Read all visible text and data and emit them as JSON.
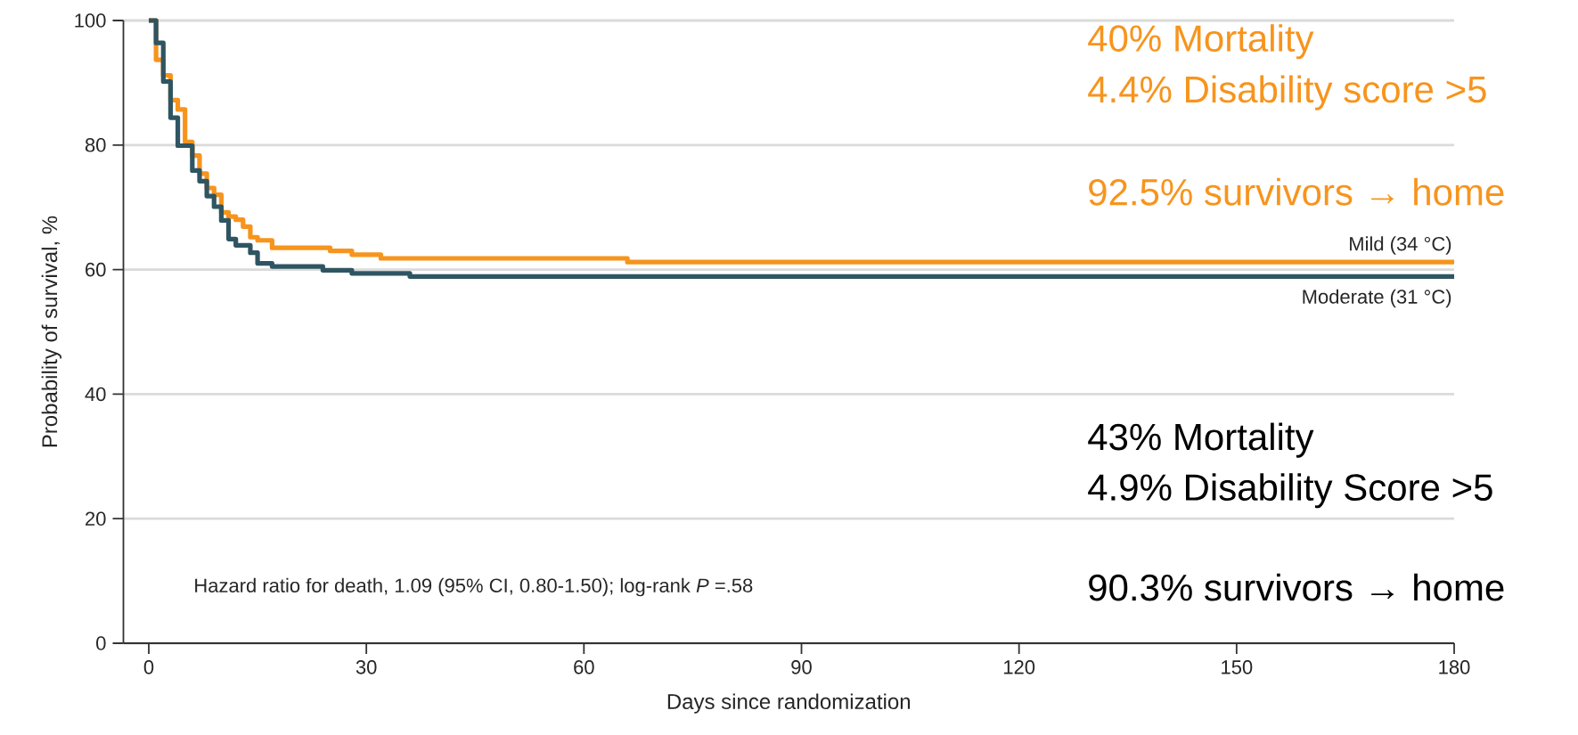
{
  "chart_data": {
    "type": "step",
    "xlabel": "Days since randomization",
    "ylabel": "Probability of survival, %",
    "xlim": [
      -3.5,
      180
    ],
    "ylim": [
      0,
      100
    ],
    "xticks": [
      0,
      30,
      60,
      90,
      120,
      150,
      180
    ],
    "yticks": [
      0,
      20,
      40,
      60,
      80,
      100
    ],
    "grid": "y",
    "series": [
      {
        "name": "Mild (34 °C)",
        "color": "#f7941d",
        "x": [
          0,
          1,
          2,
          3,
          4,
          5,
          6,
          7,
          8,
          9,
          10,
          11,
          12,
          13,
          14,
          15,
          17,
          25,
          28,
          32,
          66,
          180
        ],
        "values": [
          100,
          93.7,
          91.2,
          87.2,
          85.7,
          80.5,
          78.3,
          75.4,
          73.1,
          72.0,
          69.2,
          68.5,
          68.0,
          66.9,
          65.2,
          64.7,
          63.5,
          63.0,
          62.4,
          61.8,
          61.2,
          61.2
        ]
      },
      {
        "name": "Moderate (31 °C)",
        "color": "#2f5563",
        "x": [
          0,
          1,
          2,
          3,
          4,
          6,
          7,
          8,
          9,
          10,
          11,
          12,
          14,
          15,
          17,
          24,
          28,
          36,
          180
        ],
        "values": [
          100,
          96.4,
          90.2,
          84.4,
          79.9,
          75.9,
          74.2,
          71.8,
          70.1,
          67.9,
          64.9,
          63.9,
          62.7,
          61.0,
          60.5,
          59.9,
          59.4,
          58.9,
          58.9
        ]
      }
    ],
    "annotations": [
      "40% Mortality",
      "4.4% Disability score >5",
      "92.5% survivors → home",
      "43% Mortality",
      "4.9% Disability Score >5",
      "90.3% survivors → home",
      "Hazard ratio for death, 1.09 (95% CI, 0.80-1.50); log-rank *P* =.58"
    ]
  }
}
